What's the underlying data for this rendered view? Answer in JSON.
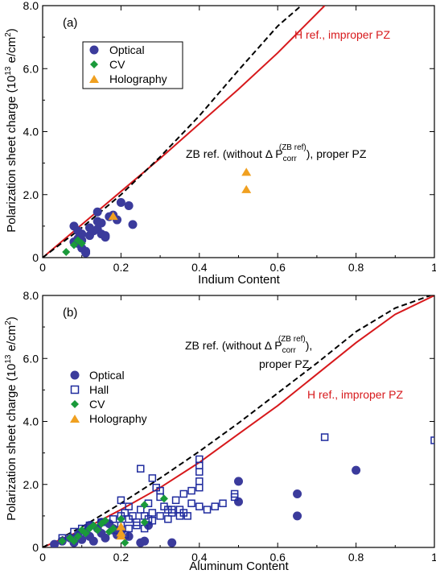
{
  "colors": {
    "h_ref_curve": "#d7191c",
    "zb_ref_curve": "#000000",
    "optical": "#3b3b9c",
    "hall": "#1f2b9e",
    "cv": "#1a9a3a",
    "holography": "#f0a020"
  },
  "chart_data": [
    {
      "type": "scatter",
      "panel_label": "(a)",
      "xlabel": "Indium Content",
      "ylabel_prefix": "Polarization sheet charge (10",
      "ylabel_exp1": "13",
      "ylabel_mid": " e/cm",
      "ylabel_exp2": "2",
      "ylabel_suffix": ")",
      "xlim": [
        0,
        1
      ],
      "ylim": [
        0,
        8
      ],
      "x_ticks": [
        0,
        0.2,
        0.4,
        0.6,
        0.8,
        1
      ],
      "x_tick_labels": [
        "0",
        "0.2",
        "0.4",
        "0.6",
        "0.8",
        "1"
      ],
      "y_ticks": [
        0,
        2,
        4,
        6,
        8
      ],
      "y_tick_labels": [
        "0",
        "2.0",
        "4.0",
        "6.0",
        "8.0"
      ],
      "grid": false,
      "legend_placement": "upper-left",
      "lines": [
        {
          "name": "H ref., improper PZ",
          "style": "solid",
          "color": "#d7191c",
          "x": [
            0,
            0.1,
            0.2,
            0.3,
            0.4,
            0.5,
            0.6,
            0.7,
            0.72
          ],
          "y": [
            0,
            1.05,
            2.1,
            3.15,
            4.25,
            5.35,
            6.5,
            7.75,
            8.0
          ]
        },
        {
          "name": "ZB ref. (without ΔP_corr^(ZB ref)), proper PZ",
          "style": "dashed",
          "color": "#000000",
          "x": [
            0,
            0.1,
            0.2,
            0.3,
            0.4,
            0.5,
            0.6,
            0.66
          ],
          "y": [
            0,
            0.95,
            2.0,
            3.2,
            4.5,
            5.95,
            7.35,
            8.0
          ]
        }
      ],
      "annotations": [
        {
          "text": "H ref., improper PZ",
          "color": "#d7191c"
        },
        {
          "text_main": "ZB ref. (without Δ P",
          "sub": "corr",
          "sup": "(ZB ref)",
          "text_tail": "), proper PZ",
          "color": "#000000"
        }
      ],
      "series": [
        {
          "name": "Optical",
          "marker": "circle",
          "color": "#3b3b9c",
          "x": [
            0.08,
            0.09,
            0.1,
            0.11,
            0.09,
            0.1,
            0.12,
            0.13,
            0.14,
            0.15,
            0.14,
            0.16,
            0.17,
            0.19,
            0.2,
            0.22,
            0.23,
            0.08,
            0.09,
            0.1,
            0.11,
            0.12,
            0.14,
            0.15,
            0.16,
            0.18
          ],
          "y": [
            1.0,
            0.6,
            0.3,
            0.15,
            0.45,
            0.75,
            0.7,
            0.85,
            1.15,
            1.1,
            0.9,
            0.65,
            1.3,
            1.2,
            1.75,
            1.65,
            1.05,
            0.5,
            0.85,
            0.55,
            0.2,
            0.95,
            1.45,
            0.75,
            0.7,
            1.35
          ]
        },
        {
          "name": "CV",
          "marker": "diamond",
          "color": "#1a9a3a",
          "x": [
            0.06,
            0.08,
            0.09,
            0.1
          ],
          "y": [
            0.18,
            0.4,
            0.55,
            0.45
          ]
        },
        {
          "name": "Holography",
          "marker": "triangle",
          "color": "#f0a020",
          "x": [
            0.18,
            0.52,
            0.52
          ],
          "y": [
            1.3,
            2.7,
            2.15
          ]
        }
      ]
    },
    {
      "type": "scatter",
      "panel_label": "(b)",
      "xlabel": "Aluminum Content",
      "ylabel_prefix": "Polarization sheet charge (10",
      "ylabel_exp1": "13",
      "ylabel_mid": " e/cm",
      "ylabel_exp2": "2",
      "ylabel_suffix": ")",
      "xlim": [
        0,
        1
      ],
      "ylim": [
        0,
        8
      ],
      "x_ticks": [
        0,
        0.2,
        0.4,
        0.6,
        0.8,
        1
      ],
      "x_tick_labels": [
        "0",
        "0.2",
        "0.4",
        "0.6",
        "0.8",
        "1"
      ],
      "y_ticks": [
        0,
        2,
        4,
        6,
        8
      ],
      "y_tick_labels": [
        "0",
        "2.0",
        "4.0",
        "6.0",
        "8.0"
      ],
      "grid": false,
      "legend_placement": "middle-left",
      "lines": [
        {
          "name": "H ref., improper PZ",
          "style": "solid",
          "color": "#d7191c",
          "x": [
            0,
            0.1,
            0.2,
            0.3,
            0.4,
            0.5,
            0.6,
            0.7,
            0.8,
            0.9,
            1.0
          ],
          "y": [
            0,
            0.55,
            1.2,
            1.9,
            2.7,
            3.6,
            4.5,
            5.5,
            6.5,
            7.4,
            8.0
          ]
        },
        {
          "name": "ZB ref. (without ΔP_corr^(ZB ref)), proper PZ",
          "style": "dashed",
          "color": "#000000",
          "x": [
            0,
            0.1,
            0.2,
            0.3,
            0.4,
            0.5,
            0.6,
            0.7,
            0.8,
            0.9,
            0.99
          ],
          "y": [
            0,
            0.65,
            1.4,
            2.2,
            3.05,
            3.95,
            4.9,
            5.85,
            6.85,
            7.6,
            8.0
          ]
        }
      ],
      "annotations": [
        {
          "text_main": "ZB ref. (without Δ P",
          "sub": "corr",
          "sup": "(ZB ref)",
          "text_tail": "),",
          "line2": "proper PZ",
          "color": "#000000"
        },
        {
          "text": "H ref., improper PZ",
          "color": "#d7191c"
        }
      ],
      "series": [
        {
          "name": "Optical",
          "marker": "circle",
          "color": "#3b3b9c",
          "x": [
            0.03,
            0.05,
            0.07,
            0.08,
            0.09,
            0.1,
            0.11,
            0.12,
            0.13,
            0.14,
            0.15,
            0.16,
            0.17,
            0.18,
            0.19,
            0.2,
            0.22,
            0.25,
            0.26,
            0.27,
            0.33,
            0.5,
            0.5,
            0.65,
            0.65,
            0.8,
            0.12,
            0.15,
            0.18
          ],
          "y": [
            0.1,
            0.2,
            0.3,
            0.15,
            0.4,
            0.25,
            0.5,
            0.35,
            0.2,
            0.6,
            0.45,
            0.3,
            0.75,
            0.55,
            0.4,
            0.5,
            0.35,
            0.15,
            0.2,
            0.7,
            0.15,
            2.1,
            1.45,
            1.7,
            1.0,
            2.45,
            0.7,
            0.8,
            0.6
          ]
        },
        {
          "name": "Hall",
          "marker": "square-open",
          "color": "#1f2b9e",
          "x": [
            0.05,
            0.08,
            0.1,
            0.12,
            0.15,
            0.18,
            0.2,
            0.2,
            0.21,
            0.22,
            0.22,
            0.23,
            0.24,
            0.25,
            0.25,
            0.26,
            0.27,
            0.28,
            0.28,
            0.29,
            0.3,
            0.3,
            0.31,
            0.32,
            0.33,
            0.34,
            0.35,
            0.36,
            0.37,
            0.38,
            0.4,
            0.4,
            0.4,
            0.4,
            0.4,
            0.4,
            0.42,
            0.44,
            0.46,
            0.49,
            0.49,
            0.72,
            1.0,
            0.22,
            0.24,
            0.3,
            0.32,
            0.35,
            0.38,
            0.26,
            0.28,
            0.2,
            0.19,
            0.21,
            0.27,
            0.33,
            0.36
          ],
          "y": [
            0.3,
            0.5,
            0.6,
            0.7,
            0.8,
            0.9,
            1.0,
            1.5,
            1.1,
            0.9,
            1.3,
            1.0,
            0.8,
            1.2,
            2.5,
            1.0,
            1.4,
            1.1,
            2.2,
            1.9,
            1.0,
            1.6,
            1.3,
            1.2,
            1.1,
            1.5,
            1.2,
            1.7,
            1.0,
            1.8,
            1.3,
            1.9,
            2.1,
            2.4,
            2.6,
            2.8,
            1.2,
            1.3,
            1.4,
            1.6,
            1.7,
            3.5,
            3.4,
            0.6,
            0.7,
            1.8,
            0.9,
            1.0,
            1.4,
            0.6,
            0.85,
            0.7,
            0.55,
            0.4,
            0.9,
            1.2,
            1.1
          ]
        },
        {
          "name": "CV",
          "marker": "diamond",
          "color": "#1a9a3a",
          "x": [
            0.05,
            0.07,
            0.09,
            0.1,
            0.12,
            0.13,
            0.14,
            0.15,
            0.16,
            0.18,
            0.2,
            0.21,
            0.26,
            0.26,
            0.31,
            0.08,
            0.11,
            0.17
          ],
          "y": [
            0.2,
            0.3,
            0.35,
            0.55,
            0.6,
            0.7,
            0.55,
            0.75,
            0.85,
            0.6,
            0.9,
            0.15,
            1.35,
            0.8,
            1.55,
            0.2,
            0.45,
            0.5
          ]
        },
        {
          "name": "Holography",
          "marker": "triangle",
          "color": "#f0a020",
          "x": [
            0.2,
            0.2,
            0.2
          ],
          "y": [
            0.65,
            0.45,
            0.35
          ]
        }
      ]
    }
  ]
}
